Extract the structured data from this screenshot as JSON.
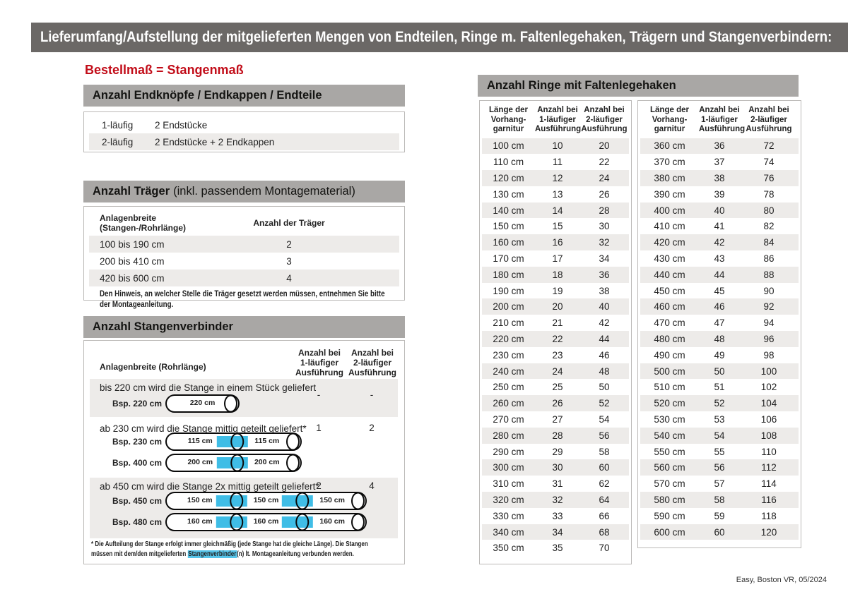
{
  "title_bar": "Lieferumfang/Aufstellung der mitgelieferten Mengen von Endteilen, Ringe m. Faltenlegehaken, Trägern und Stangenverbindern:",
  "subtitle": "Bestellmaß = Stangenmaß",
  "footer": "Easy, Boston VR, 05/2024",
  "colors": {
    "header_bar": "#6b6866",
    "section_band": "#a9a7a5",
    "row_alt": "#edebe9",
    "accent_red": "#c20d19",
    "connector_cyan": "#3fbde6"
  },
  "endteile": {
    "header": "Anzahl Endknöpfe / Endkappen / Endteile",
    "rows": [
      {
        "label": "1-läufig",
        "value": "2 Endstücke"
      },
      {
        "label": "2-läufig",
        "value": "2 Endstücke + 2 Endkappen"
      }
    ]
  },
  "traeger": {
    "header_bold": "Anzahl Träger",
    "header_normal": "(inkl. passendem Montagematerial)",
    "col1": "Anlagenbreite (Stangen-/Rohrlänge)",
    "col2": "Anzahl der Träger",
    "rows": [
      {
        "range": "100 bis 190 cm",
        "count": "2"
      },
      {
        "range": "200 bis 410 cm",
        "count": "3"
      },
      {
        "range": "420 bis 600 cm",
        "count": "4"
      }
    ],
    "note": "Den Hinweis, an welcher Stelle die Träger gesetzt werden müssen, entnehmen Sie bitte\nder Montageanleitung."
  },
  "verbinder": {
    "header": "Anzahl Stangenverbinder",
    "col1": "Anlagenbreite (Rohrlänge)",
    "col2": "Anzahl bei\n1-läufiger\nAusführung",
    "col3": "Anzahl bei\n2-läufiger\nAusführung",
    "groups": [
      {
        "text": "bis 220 cm wird die Stange in einem Stück geliefert",
        "v1": "-",
        "v2": "-",
        "examples": [
          {
            "label": "Bsp. 220 cm",
            "segments": [
              "220 cm"
            ]
          }
        ]
      },
      {
        "text": "ab 230 cm wird die Stange mittig geteilt geliefert*",
        "v1": "1",
        "v2": "2",
        "examples": [
          {
            "label": "Bsp. 230 cm",
            "segments": [
              "115 cm",
              "115 cm"
            ]
          },
          {
            "label": "Bsp. 400 cm",
            "segments": [
              "200 cm",
              "200 cm"
            ]
          }
        ]
      },
      {
        "text": "ab 450 cm wird die Stange 2x mittig geteilt geliefert*",
        "v1": "2",
        "v2": "4",
        "examples": [
          {
            "label": "Bsp. 450 cm",
            "segments": [
              "150 cm",
              "150 cm",
              "150 cm"
            ]
          },
          {
            "label": "Bsp. 480 cm",
            "segments": [
              "160 cm",
              "160 cm",
              "160 cm"
            ]
          }
        ]
      }
    ],
    "footnote_pre": "* Die Aufteilung der Stange erfolgt immer gleichmäßig (jede Stange hat die gleiche Länge). Die Stangen\nmüssen mit dem/den mitgelieferten ",
    "footnote_highlight": "Stangenverbinder",
    "footnote_post": "(n) lt. Montageanleitung verbunden werden."
  },
  "ringe": {
    "header": "Anzahl Ringe mit Faltenlegehaken",
    "col_headers": [
      "Länge der\nVorhang-\ngarnitur",
      "Anzahl bei\n1-läufiger\nAusführung",
      "Anzahl bei\n2-läufiger\nAusführung"
    ],
    "left_rows": [
      [
        "100 cm",
        "10",
        "20"
      ],
      [
        "110 cm",
        "11",
        "22"
      ],
      [
        "120 cm",
        "12",
        "24"
      ],
      [
        "130 cm",
        "13",
        "26"
      ],
      [
        "140 cm",
        "14",
        "28"
      ],
      [
        "150 cm",
        "15",
        "30"
      ],
      [
        "160 cm",
        "16",
        "32"
      ],
      [
        "170 cm",
        "17",
        "34"
      ],
      [
        "180 cm",
        "18",
        "36"
      ],
      [
        "190 cm",
        "19",
        "38"
      ],
      [
        "200 cm",
        "20",
        "40"
      ],
      [
        "210 cm",
        "21",
        "42"
      ],
      [
        "220 cm",
        "22",
        "44"
      ],
      [
        "230 cm",
        "23",
        "46"
      ],
      [
        "240 cm",
        "24",
        "48"
      ],
      [
        "250 cm",
        "25",
        "50"
      ],
      [
        "260 cm",
        "26",
        "52"
      ],
      [
        "270 cm",
        "27",
        "54"
      ],
      [
        "280 cm",
        "28",
        "56"
      ],
      [
        "290 cm",
        "29",
        "58"
      ],
      [
        "300 cm",
        "30",
        "60"
      ],
      [
        "310 cm",
        "31",
        "62"
      ],
      [
        "320 cm",
        "32",
        "64"
      ],
      [
        "330 cm",
        "33",
        "66"
      ],
      [
        "340 cm",
        "34",
        "68"
      ],
      [
        "350 cm",
        "35",
        "70"
      ]
    ],
    "right_rows": [
      [
        "360 cm",
        "36",
        "72"
      ],
      [
        "370 cm",
        "37",
        "74"
      ],
      [
        "380 cm",
        "38",
        "76"
      ],
      [
        "390 cm",
        "39",
        "78"
      ],
      [
        "400 cm",
        "40",
        "80"
      ],
      [
        "410 cm",
        "41",
        "82"
      ],
      [
        "420 cm",
        "42",
        "84"
      ],
      [
        "430 cm",
        "43",
        "86"
      ],
      [
        "440 cm",
        "44",
        "88"
      ],
      [
        "450 cm",
        "45",
        "90"
      ],
      [
        "460 cm",
        "46",
        "92"
      ],
      [
        "470 cm",
        "47",
        "94"
      ],
      [
        "480 cm",
        "48",
        "96"
      ],
      [
        "490 cm",
        "49",
        "98"
      ],
      [
        "500 cm",
        "50",
        "100"
      ],
      [
        "510 cm",
        "51",
        "102"
      ],
      [
        "520 cm",
        "52",
        "104"
      ],
      [
        "530 cm",
        "53",
        "106"
      ],
      [
        "540 cm",
        "54",
        "108"
      ],
      [
        "550 cm",
        "55",
        "110"
      ],
      [
        "560 cm",
        "56",
        "112"
      ],
      [
        "570 cm",
        "57",
        "114"
      ],
      [
        "580 cm",
        "58",
        "116"
      ],
      [
        "590 cm",
        "59",
        "118"
      ],
      [
        "600 cm",
        "60",
        "120"
      ]
    ]
  }
}
